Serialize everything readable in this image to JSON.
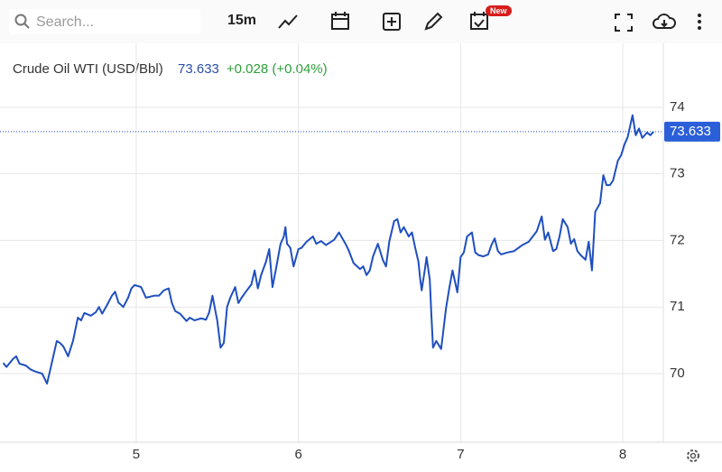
{
  "toolbar": {
    "search_placeholder": "Search...",
    "interval": "15m",
    "badge": "New"
  },
  "chart_data": {
    "type": "line",
    "title": "Crude Oil WTI (USD/Bbl)",
    "last_value": 73.633,
    "change": "+0.028 (+0.04%)",
    "color": "#1f4fbf",
    "grid": true,
    "xlim": [
      4.16,
      8.25
    ],
    "xticks": [
      5,
      6,
      7,
      8
    ],
    "ylim": [
      68.97,
      74.96
    ],
    "yticks": [
      70,
      71,
      72,
      73,
      74
    ],
    "x": [
      4.18,
      4.2,
      4.24,
      4.26,
      4.28,
      4.32,
      4.35,
      4.38,
      4.42,
      4.45,
      4.47,
      4.51,
      4.53,
      4.55,
      4.58,
      4.61,
      4.64,
      4.66,
      4.68,
      4.72,
      4.75,
      4.77,
      4.79,
      4.82,
      4.85,
      4.87,
      4.89,
      4.92,
      4.95,
      4.97,
      4.99,
      5.03,
      5.06,
      5.11,
      5.14,
      5.17,
      5.2,
      5.22,
      5.24,
      5.27,
      5.31,
      5.33,
      5.36,
      5.4,
      5.43,
      5.45,
      5.47,
      5.5,
      5.52,
      5.54,
      5.56,
      5.58,
      5.61,
      5.63,
      5.65,
      5.67,
      5.71,
      5.73,
      5.75,
      5.77,
      5.8,
      5.82,
      5.84,
      5.86,
      5.89,
      5.91,
      5.92,
      5.93,
      5.95,
      5.97,
      6.0,
      6.02,
      6.05,
      6.09,
      6.11,
      6.14,
      6.17,
      6.22,
      6.25,
      6.29,
      6.31,
      6.34,
      6.38,
      6.4,
      6.42,
      6.44,
      6.46,
      6.49,
      6.52,
      6.54,
      6.56,
      6.59,
      6.61,
      6.63,
      6.65,
      6.68,
      6.7,
      6.72,
      6.74,
      6.75,
      6.76,
      6.78,
      6.79,
      6.81,
      6.82,
      6.83,
      6.85,
      6.88,
      6.89,
      6.91,
      6.93,
      6.95,
      6.98,
      7.0,
      7.02,
      7.04,
      7.07,
      7.09,
      7.11,
      7.14,
      7.17,
      7.19,
      7.21,
      7.23,
      7.25,
      7.29,
      7.33,
      7.38,
      7.42,
      7.47,
      7.5,
      7.52,
      7.54,
      7.57,
      7.59,
      7.61,
      7.63,
      7.66,
      7.68,
      7.7,
      7.72,
      7.74,
      7.77,
      7.79,
      7.81,
      7.83,
      7.86,
      7.88,
      7.9,
      7.92,
      7.94,
      7.97,
      7.99,
      8.01,
      8.03,
      8.06,
      8.08,
      8.1,
      8.12,
      8.15,
      8.17,
      8.19
    ],
    "values": [
      70.16,
      70.1,
      70.22,
      70.26,
      70.15,
      70.12,
      70.06,
      70.03,
      70.0,
      69.85,
      70.06,
      70.49,
      70.46,
      70.41,
      70.26,
      70.49,
      70.84,
      70.8,
      70.91,
      70.87,
      70.92,
      71.0,
      70.9,
      71.03,
      71.17,
      71.23,
      71.07,
      71.0,
      71.14,
      71.28,
      71.33,
      71.3,
      71.14,
      71.17,
      71.17,
      71.25,
      71.28,
      71.06,
      70.94,
      70.9,
      70.79,
      70.84,
      70.8,
      70.83,
      70.81,
      70.92,
      71.17,
      70.79,
      70.39,
      70.46,
      71.0,
      71.14,
      71.3,
      71.06,
      71.14,
      71.21,
      71.34,
      71.55,
      71.28,
      71.48,
      71.68,
      71.87,
      71.3,
      71.55,
      71.95,
      72.06,
      72.2,
      71.95,
      71.89,
      71.61,
      71.87,
      71.89,
      71.98,
      72.06,
      71.95,
      71.99,
      71.93,
      72.01,
      72.12,
      71.95,
      71.85,
      71.66,
      71.57,
      71.61,
      71.48,
      71.55,
      71.76,
      71.95,
      71.71,
      71.61,
      71.98,
      72.29,
      72.32,
      72.12,
      72.2,
      72.06,
      72.12,
      71.89,
      71.68,
      71.44,
      71.25,
      71.57,
      71.75,
      71.41,
      70.87,
      70.39,
      70.49,
      70.37,
      70.57,
      70.98,
      71.28,
      71.55,
      71.22,
      71.75,
      71.82,
      72.06,
      72.12,
      71.82,
      71.78,
      71.76,
      71.79,
      71.93,
      72.03,
      71.84,
      71.79,
      71.82,
      71.84,
      71.93,
      71.98,
      72.14,
      72.36,
      72.01,
      72.12,
      71.84,
      71.87,
      72.06,
      72.32,
      72.2,
      71.95,
      72.02,
      71.84,
      71.78,
      71.71,
      71.98,
      71.55,
      72.43,
      72.56,
      72.98,
      72.83,
      72.83,
      72.9,
      73.2,
      73.28,
      73.44,
      73.55,
      73.88,
      73.58,
      73.68,
      73.54,
      73.62,
      73.58,
      73.633
    ]
  }
}
